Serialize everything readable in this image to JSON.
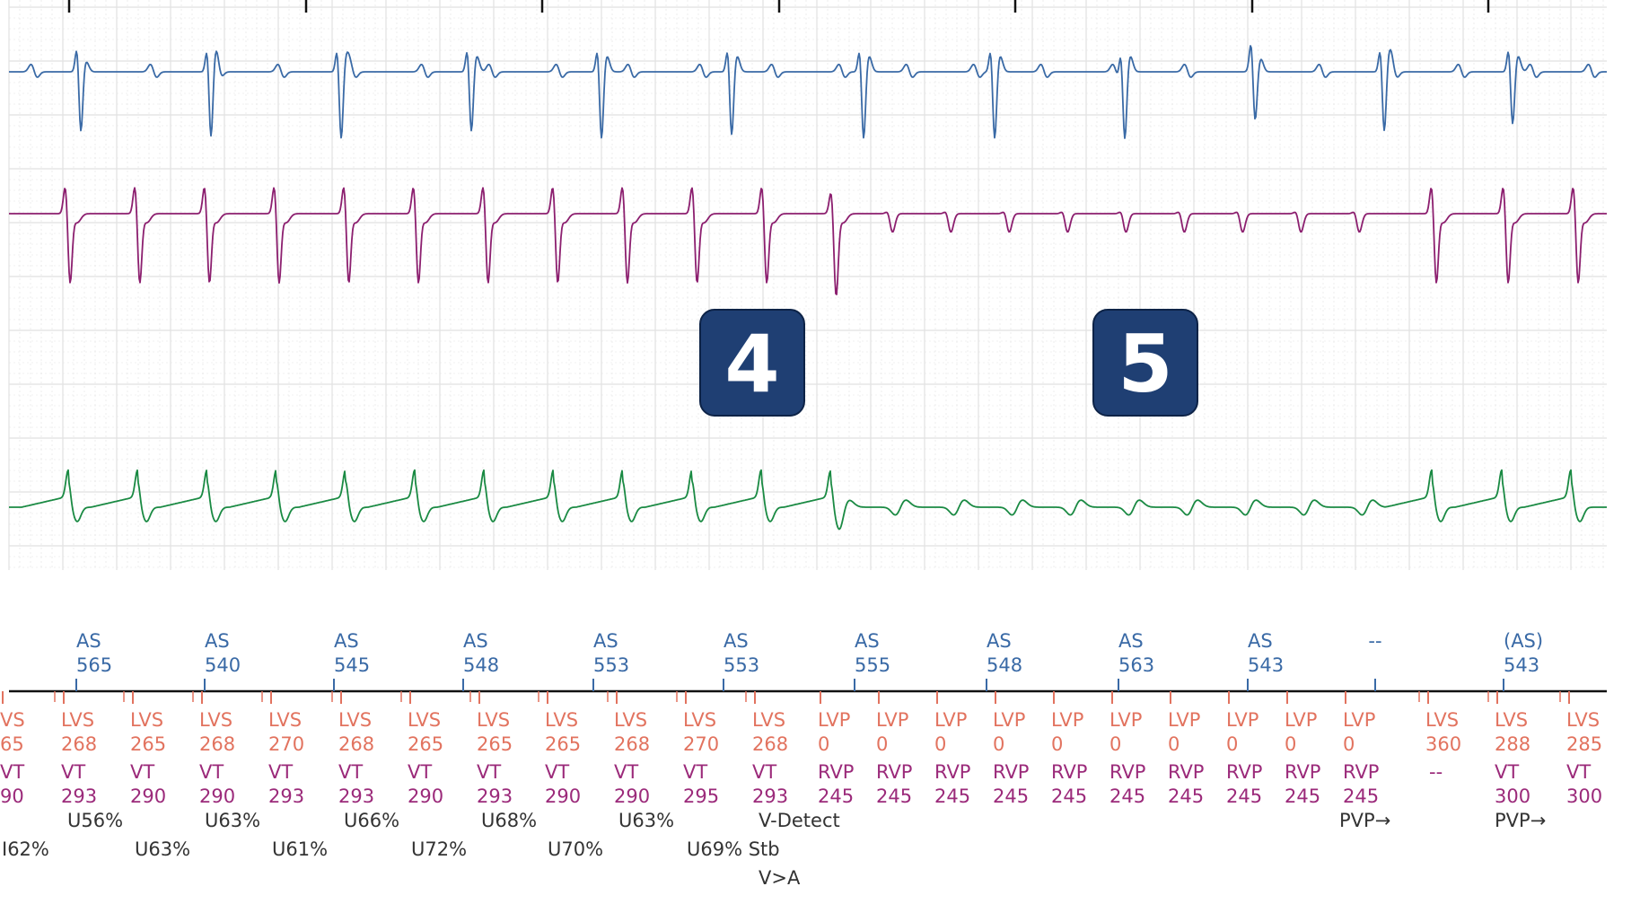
{
  "colors": {
    "atrial": "#3a6aa6",
    "rv": "#8c1f6f",
    "lv": "#1a8a43",
    "vlabel": "#e2735f",
    "pace": "#9b2a7a",
    "note": "#333333",
    "grid": "#e1e1e1",
    "badge": "#1f3f73"
  },
  "badges": [
    {
      "label": "4"
    },
    {
      "label": "5"
    }
  ],
  "chart_data": {
    "type": "line",
    "title": "",
    "channels": [
      {
        "name": "",
        "color": "#3a6aa6"
      },
      {
        "name": "",
        "color": "#8c1f6f"
      },
      {
        "name": "",
        "color": "#1a8a43"
      }
    ],
    "atrial_markers": [
      {
        "l1": "AS",
        "l2": "565"
      },
      {
        "l1": "AS",
        "l2": "540"
      },
      {
        "l1": "AS",
        "l2": "545"
      },
      {
        "l1": "AS",
        "l2": "548"
      },
      {
        "l1": "AS",
        "l2": "553"
      },
      {
        "l1": "AS",
        "l2": "553"
      },
      {
        "l1": "AS",
        "l2": "555"
      },
      {
        "l1": "AS",
        "l2": "548"
      },
      {
        "l1": "AS",
        "l2": "563"
      },
      {
        "l1": "AS",
        "l2": "543"
      },
      {
        "l1": "--",
        "l2": ""
      },
      {
        "l1": "(AS)",
        "l2": "543"
      }
    ],
    "ventricular_markers": [
      {
        "l1": "VS",
        "l2": "65",
        "l3": "VT",
        "l4": "90",
        "kind": "sense"
      },
      {
        "l1": "LVS",
        "l2": "268",
        "l3": "VT",
        "l4": "293",
        "kind": "sense"
      },
      {
        "l1": "LVS",
        "l2": "265",
        "l3": "VT",
        "l4": "290",
        "kind": "sense"
      },
      {
        "l1": "LVS",
        "l2": "268",
        "l3": "VT",
        "l4": "290",
        "kind": "sense"
      },
      {
        "l1": "LVS",
        "l2": "270",
        "l3": "VT",
        "l4": "293",
        "kind": "sense"
      },
      {
        "l1": "LVS",
        "l2": "268",
        "l3": "VT",
        "l4": "293",
        "kind": "sense"
      },
      {
        "l1": "LVS",
        "l2": "265",
        "l3": "VT",
        "l4": "290",
        "kind": "sense"
      },
      {
        "l1": "LVS",
        "l2": "265",
        "l3": "VT",
        "l4": "293",
        "kind": "sense"
      },
      {
        "l1": "LVS",
        "l2": "265",
        "l3": "VT",
        "l4": "290",
        "kind": "sense"
      },
      {
        "l1": "LVS",
        "l2": "268",
        "l3": "VT",
        "l4": "290",
        "kind": "sense"
      },
      {
        "l1": "LVS",
        "l2": "270",
        "l3": "VT",
        "l4": "295",
        "kind": "sense"
      },
      {
        "l1": "LVS",
        "l2": "268",
        "l3": "VT",
        "l4": "293",
        "kind": "sense"
      },
      {
        "l1": "LVP",
        "l2": "0",
        "l3": "RVP",
        "l4": "245",
        "kind": "pace"
      },
      {
        "l1": "LVP",
        "l2": "0",
        "l3": "RVP",
        "l4": "245",
        "kind": "pace"
      },
      {
        "l1": "LVP",
        "l2": "0",
        "l3": "RVP",
        "l4": "245",
        "kind": "pace"
      },
      {
        "l1": "LVP",
        "l2": "0",
        "l3": "RVP",
        "l4": "245",
        "kind": "pace"
      },
      {
        "l1": "LVP",
        "l2": "0",
        "l3": "RVP",
        "l4": "245",
        "kind": "pace"
      },
      {
        "l1": "LVP",
        "l2": "0",
        "l3": "RVP",
        "l4": "245",
        "kind": "pace"
      },
      {
        "l1": "LVP",
        "l2": "0",
        "l3": "RVP",
        "l4": "245",
        "kind": "pace"
      },
      {
        "l1": "LVP",
        "l2": "0",
        "l3": "RVP",
        "l4": "245",
        "kind": "pace"
      },
      {
        "l1": "LVP",
        "l2": "0",
        "l3": "RVP",
        "l4": "245",
        "kind": "pace"
      },
      {
        "l1": "LVP",
        "l2": "0",
        "l3": "RVP",
        "l4": "245",
        "kind": "pace"
      },
      {
        "l1": "LVS",
        "l2": "360",
        "l3": "--",
        "l4": "",
        "kind": "sense"
      },
      {
        "l1": "LVS",
        "l2": "288",
        "l3": "VT",
        "l4": "300",
        "kind": "sense"
      },
      {
        "l1": "LVS",
        "l2": "285",
        "l3": "VT",
        "l4": "300",
        "kind": "sense"
      }
    ],
    "annotations_row1": [
      "U56%",
      "U63%",
      "U66%",
      "U68%",
      "U63%",
      "V-Detect",
      "PVP→",
      "PVP→"
    ],
    "annotations_row2": [
      "I62%",
      "U63%",
      "U61%",
      "U72%",
      "U70%",
      "U69% Stb"
    ],
    "annotations_row3": [
      "V>A"
    ]
  }
}
